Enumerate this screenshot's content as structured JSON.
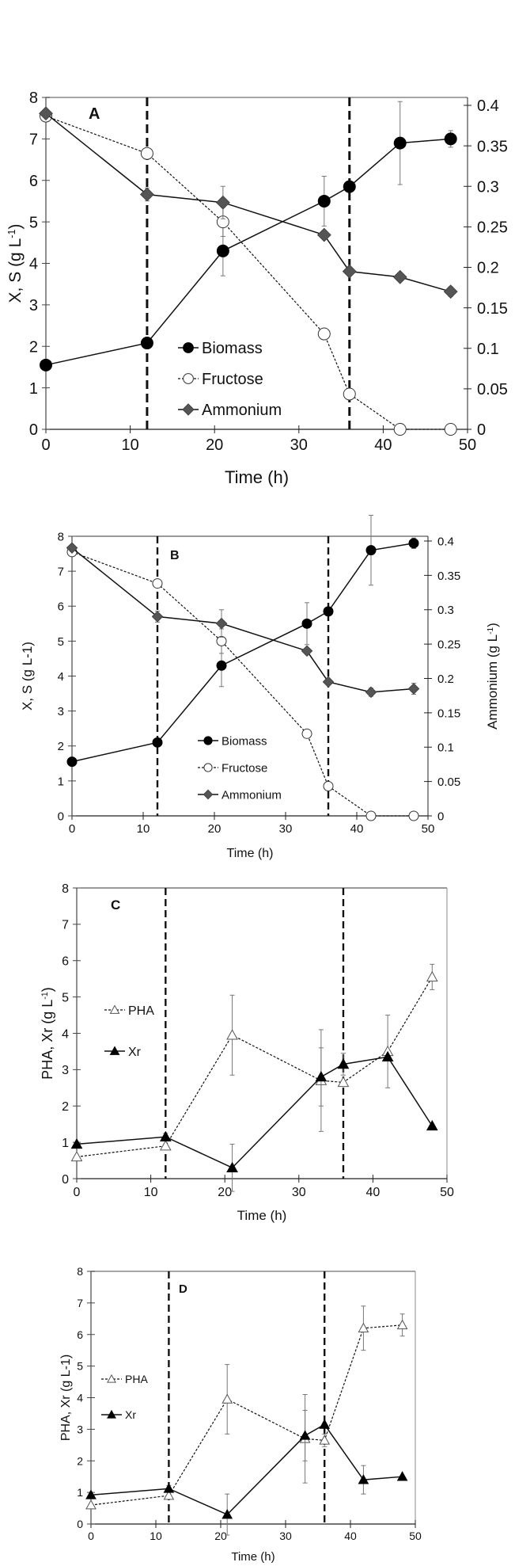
{
  "chart_data": [
    {
      "type": "line",
      "panel_label": "A",
      "xlabel": "Time (h)",
      "ylabel": "X, S (g L",
      "ylabel_sup": "-1",
      "ylabel_tail": ")",
      "y2label": "",
      "xlim": [
        0,
        50
      ],
      "ylim": [
        0,
        8
      ],
      "y2lim": [
        0,
        0.4
      ],
      "xticks": [
        "0",
        "10",
        "20",
        "30",
        "40",
        "50"
      ],
      "yticks": [
        "0",
        "1",
        "2",
        "3",
        "4",
        "5",
        "6",
        "7",
        "8"
      ],
      "y2ticks": [
        "0",
        "0.05",
        "0.1",
        "0.15",
        "0.2",
        "0.25",
        "0.3",
        "0.35",
        "0.4"
      ],
      "vlines": [
        12,
        36
      ],
      "legend": [
        "Biomass",
        "Fructose",
        "Ammonium"
      ],
      "series": [
        {
          "name": "Biomass",
          "axis": "y",
          "x": [
            0,
            12,
            21,
            33,
            36,
            42,
            48
          ],
          "y": [
            1.55,
            2.08,
            4.3,
            5.5,
            5.85,
            6.9,
            7.0
          ],
          "err": [
            0.1,
            0.1,
            0.6,
            0.6,
            0.1,
            1.0,
            0.2
          ]
        },
        {
          "name": "Fructose",
          "axis": "y",
          "x": [
            0,
            12,
            21,
            33,
            36,
            42,
            48
          ],
          "y": [
            7.55,
            6.65,
            5.0,
            2.3,
            0.85,
            0.0,
            0.0
          ],
          "err": [
            0,
            0,
            0.35,
            0.05,
            0.05,
            0,
            0
          ]
        },
        {
          "name": "Ammonium",
          "axis": "y2",
          "x": [
            0,
            12,
            21,
            33,
            36,
            42,
            48
          ],
          "y": [
            0.39,
            0.29,
            0.28,
            0.24,
            0.195,
            0.188,
            0.17
          ],
          "err": [
            0,
            0.008,
            0.02,
            0,
            0,
            0,
            0.006
          ]
        }
      ]
    },
    {
      "type": "line",
      "panel_label": "B",
      "xlabel": "Time (h)",
      "ylabel": "X, S (g L-1)",
      "ylabel_sup": "",
      "ylabel_tail": "",
      "y2label": "Ammonium (g L",
      "y2label_sup": "-1",
      "y2label_tail": ")",
      "xlim": [
        0,
        50
      ],
      "ylim": [
        0,
        8
      ],
      "y2lim": [
        0,
        0.4
      ],
      "xticks": [
        "0",
        "10",
        "20",
        "30",
        "40",
        "50"
      ],
      "yticks": [
        "0",
        "1",
        "2",
        "3",
        "4",
        "5",
        "6",
        "7",
        "8"
      ],
      "y2ticks": [
        "0",
        "0.05",
        "0.1",
        "0.15",
        "0.2",
        "0.25",
        "0.3",
        "0.35",
        "0.4"
      ],
      "vlines": [
        12,
        36
      ],
      "legend": [
        "Biomass",
        "Fructose",
        "Ammonium"
      ],
      "series": [
        {
          "name": "Biomass",
          "axis": "y",
          "x": [
            0,
            12,
            21,
            33,
            36,
            42,
            48
          ],
          "y": [
            1.55,
            2.1,
            4.3,
            5.5,
            5.85,
            7.6,
            7.8
          ],
          "err": [
            0.1,
            0.12,
            0.6,
            0.6,
            0.1,
            1.0,
            0.15
          ]
        },
        {
          "name": "Fructose",
          "axis": "y",
          "x": [
            0,
            12,
            21,
            33,
            36,
            42,
            48
          ],
          "y": [
            7.55,
            6.65,
            5.0,
            2.35,
            0.85,
            0.0,
            0.0
          ],
          "err": [
            0,
            0,
            0.35,
            0.1,
            0.05,
            0,
            0
          ]
        },
        {
          "name": "Ammonium",
          "axis": "y2",
          "x": [
            0,
            12,
            21,
            33,
            36,
            42,
            48
          ],
          "y": [
            0.39,
            0.29,
            0.28,
            0.24,
            0.195,
            0.18,
            0.185
          ],
          "err": [
            0,
            0.008,
            0.02,
            0,
            0,
            0.006,
            0.008
          ]
        }
      ]
    },
    {
      "type": "line",
      "panel_label": "C",
      "xlabel": "Time (h)",
      "ylabel": "PHA, Xr (g L",
      "ylabel_sup": "-1",
      "ylabel_tail": ")",
      "xlim": [
        0,
        50
      ],
      "ylim": [
        0,
        8
      ],
      "xticks": [
        "0",
        "10",
        "20",
        "30",
        "40",
        "50"
      ],
      "yticks": [
        "0",
        "1",
        "2",
        "3",
        "4",
        "5",
        "6",
        "7",
        "8"
      ],
      "vlines": [
        12,
        36
      ],
      "legend": [
        "PHA",
        "Xr"
      ],
      "series": [
        {
          "name": "PHA",
          "axis": "y",
          "x": [
            0,
            12,
            21,
            33,
            36,
            42,
            48
          ],
          "y": [
            0.6,
            0.9,
            3.95,
            2.7,
            2.65,
            3.5,
            5.55
          ],
          "err": [
            0,
            0,
            1.1,
            1.4,
            0,
            1.0,
            0.35
          ]
        },
        {
          "name": "Xr",
          "axis": "y",
          "x": [
            0,
            12,
            21,
            33,
            36,
            42,
            48
          ],
          "y": [
            0.95,
            1.15,
            0.3,
            2.8,
            3.15,
            3.35,
            1.45
          ],
          "err": [
            0,
            0.1,
            0.65,
            0.8,
            0.3,
            0,
            0
          ]
        }
      ]
    },
    {
      "type": "line",
      "panel_label": "D",
      "xlabel": "Time (h)",
      "ylabel": "PHA, Xr (g L-1)",
      "ylabel_sup": "",
      "ylabel_tail": "",
      "xlim": [
        0,
        50
      ],
      "ylim": [
        0,
        8
      ],
      "xticks": [
        "0",
        "10",
        "20",
        "30",
        "40",
        "50"
      ],
      "yticks": [
        "0",
        "1",
        "2",
        "3",
        "4",
        "5",
        "6",
        "7",
        "8"
      ],
      "vlines": [
        12,
        36
      ],
      "legend": [
        "PHA",
        "Xr"
      ],
      "series": [
        {
          "name": "PHA",
          "axis": "y",
          "x": [
            0,
            12,
            21,
            33,
            36,
            42,
            48
          ],
          "y": [
            0.6,
            0.9,
            3.95,
            2.7,
            2.65,
            6.2,
            6.3
          ],
          "err": [
            0,
            0,
            1.1,
            1.4,
            0.2,
            0.7,
            0.35
          ]
        },
        {
          "name": "Xr",
          "axis": "y",
          "x": [
            0,
            12,
            21,
            33,
            36,
            42,
            48
          ],
          "y": [
            0.92,
            1.12,
            0.3,
            2.8,
            3.15,
            1.4,
            1.5
          ],
          "err": [
            0,
            0.1,
            0.65,
            0.8,
            0,
            0.45,
            0
          ]
        }
      ]
    }
  ]
}
